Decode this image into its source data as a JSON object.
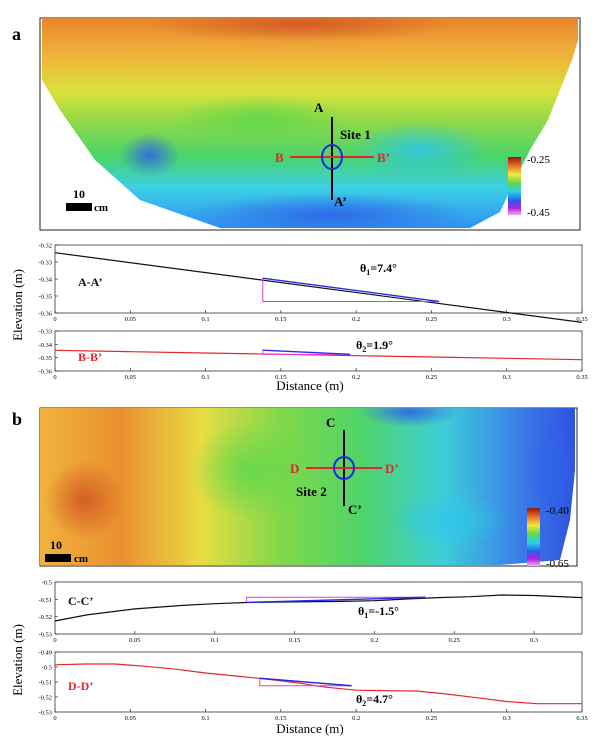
{
  "panel_a": {
    "letter": "a",
    "map": {
      "labels": {
        "A": "A",
        "A2": "A’",
        "B": "B",
        "B2": "B’",
        "site": "Site 1"
      },
      "scalebar": "10",
      "scalebar_unit": "cm",
      "colorbar": {
        "max": "-0.25",
        "min": "-0.45"
      }
    },
    "profiles": [
      {
        "name": "A-A’",
        "angle_label": "θ",
        "angle_sub": "1",
        "angle_val": "=7.4°",
        "color": "#111111",
        "label_color": "#111111"
      },
      {
        "name": "B-B’",
        "angle_label": "θ",
        "angle_sub": "2",
        "angle_val": "=1.9°",
        "color": "#e8262a",
        "label_color": "#e8262a"
      }
    ]
  },
  "panel_b": {
    "letter": "b",
    "map": {
      "labels": {
        "C": "C",
        "C2": "C’",
        "D": "D",
        "D2": "D’",
        "site": "Site 2"
      },
      "scalebar": "10",
      "scalebar_unit": "cm",
      "colorbar": {
        "max": "-0.40",
        "min": "-0.65"
      }
    },
    "profiles": [
      {
        "name": "C-C’",
        "angle_label": "θ",
        "angle_sub": "1",
        "angle_val": "=-1.5°",
        "color": "#111111",
        "label_color": "#111111"
      },
      {
        "name": "D-D’",
        "angle_label": "θ",
        "angle_sub": "2",
        "angle_val": "=4.7°",
        "color": "#e8262a",
        "label_color": "#e8262a"
      }
    ]
  },
  "axes": {
    "ylabel": "Elevation (m)",
    "xlabel": "Distance (m)"
  },
  "chart_data": [
    {
      "type": "line",
      "title": "A-A’",
      "xlabel": "",
      "ylabel": "",
      "xlim": [
        0,
        0.35
      ],
      "ylim": [
        -0.36,
        -0.32
      ],
      "xticks": [
        "0",
        "0.05",
        "0.1",
        "0.15",
        "0.2",
        "0.25",
        "0.3",
        "0.35"
      ],
      "yticks": [
        "-0.32",
        "-0.33",
        "-0.34",
        "-0.35",
        "-0.36"
      ],
      "series": [
        {
          "name": "A-A’",
          "x": [
            0,
            0.35
          ],
          "y": [
            -0.3245,
            -0.3655
          ]
        }
      ],
      "highlight": {
        "x": [
          0.138,
          0.255
        ],
        "y": [
          -0.3395,
          -0.3532
        ]
      },
      "angle": {
        "text": "θ1=7.4°"
      }
    },
    {
      "type": "line",
      "title": "B-B’",
      "xlabel": "Distance (m)",
      "ylabel": "",
      "xlim": [
        0,
        0.35
      ],
      "ylim": [
        -0.36,
        -0.33
      ],
      "xticks": [
        "0",
        "0.05",
        "0.1",
        "0.15",
        "0.2",
        "0.25",
        "0.3",
        "0.35"
      ],
      "yticks": [
        "-0.33",
        "-0.34",
        "-0.35",
        "-0.36"
      ],
      "series": [
        {
          "name": "B-B’",
          "x": [
            0,
            0.05,
            0.1,
            0.15,
            0.2,
            0.25,
            0.3,
            0.35
          ],
          "y": [
            -0.3445,
            -0.3455,
            -0.3465,
            -0.3475,
            -0.3485,
            -0.3495,
            -0.3505,
            -0.3515
          ]
        }
      ],
      "highlight": {
        "x": [
          0.138,
          0.196
        ],
        "y": [
          -0.3444,
          -0.3475
        ]
      },
      "angle": {
        "text": "θ2=1.9°"
      }
    },
    {
      "type": "line",
      "title": "C-C’",
      "xlabel": "",
      "ylabel": "",
      "xlim": [
        0,
        0.33
      ],
      "ylim": [
        -0.53,
        -0.5
      ],
      "xticks": [
        "0",
        "0.05",
        "0.1",
        "0.15",
        "0.2",
        "0.25",
        "0.3"
      ],
      "yticks": [
        "-0.5",
        "-0.51",
        "-0.52",
        "-0.53"
      ],
      "series": [
        {
          "name": "C-C’",
          "x": [
            0,
            0.02,
            0.05,
            0.08,
            0.1,
            0.12,
            0.15,
            0.18,
            0.2,
            0.22,
            0.24,
            0.26,
            0.28,
            0.3,
            0.33
          ],
          "y": [
            -0.5225,
            -0.519,
            -0.5155,
            -0.5135,
            -0.5125,
            -0.5118,
            -0.5115,
            -0.5112,
            -0.5108,
            -0.5098,
            -0.509,
            -0.5085,
            -0.5075,
            -0.5078,
            -0.509
          ]
        }
      ],
      "highlight": {
        "x": [
          0.12,
          0.232
        ],
        "y": [
          -0.5118,
          -0.5088
        ]
      },
      "angle": {
        "text": "θ1=-1.5°"
      }
    },
    {
      "type": "line",
      "title": "D-D’",
      "xlabel": "Distance (m)",
      "ylabel": "",
      "xlim": [
        0,
        0.35
      ],
      "ylim": [
        -0.53,
        -0.49
      ],
      "xticks": [
        "0",
        "0.05",
        "0.1",
        "0.15",
        "0.2",
        "0.25",
        "0.3",
        "0.35"
      ],
      "yticks": [
        "-0.49",
        "-0.5",
        "-0.51",
        "-0.52",
        "-0.53"
      ],
      "series": [
        {
          "name": "D-D’",
          "x": [
            0,
            0.02,
            0.04,
            0.06,
            0.08,
            0.1,
            0.12,
            0.14,
            0.16,
            0.18,
            0.2,
            0.22,
            0.24,
            0.26,
            0.28,
            0.3,
            0.32,
            0.35
          ],
          "y": [
            -0.4985,
            -0.498,
            -0.498,
            -0.4995,
            -0.5015,
            -0.504,
            -0.506,
            -0.508,
            -0.5105,
            -0.5135,
            -0.5155,
            -0.5158,
            -0.516,
            -0.518,
            -0.5205,
            -0.523,
            -0.5245,
            -0.5245
          ]
        }
      ],
      "highlight": {
        "x": [
          0.136,
          0.197
        ],
        "y": [
          -0.5075,
          -0.5125
        ]
      },
      "angle": {
        "text": "θ2=4.7°"
      }
    }
  ]
}
